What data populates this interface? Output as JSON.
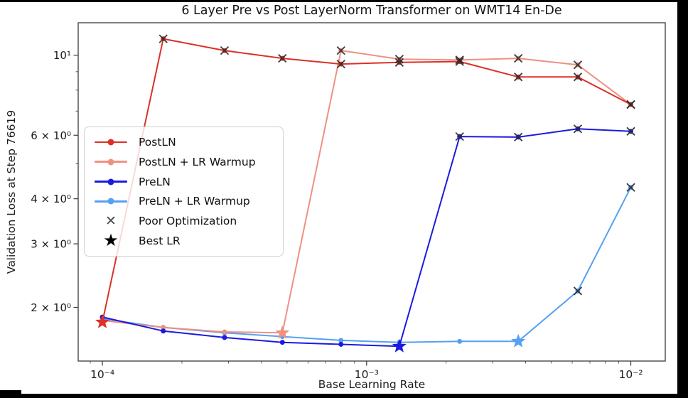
{
  "chart_data": {
    "type": "line",
    "title": "6 Layer Pre vs Post LayerNorm Transformer on WMT14 En-De",
    "xlabel": "Base Learning Rate",
    "ylabel": "Validation Loss at Step 76619",
    "xscale": "log",
    "yscale": "log",
    "xlim": [
      8.1e-05,
      0.0135
    ],
    "ylim": [
      1.42,
      12.3
    ],
    "grid": false,
    "legend_position": "center left",
    "x": [
      0.0001,
      0.00017,
      0.00029,
      0.00048,
      0.0008,
      0.00133,
      0.00225,
      0.00375,
      0.0063,
      0.01
    ],
    "series": [
      {
        "name": "PostLN",
        "color": "#dc3127",
        "values": [
          1.82,
          11.1,
          10.3,
          9.8,
          9.45,
          9.55,
          9.6,
          8.7,
          8.7,
          7.3
        ],
        "markers": [
          "star",
          "x",
          "x",
          "x",
          "x",
          "x",
          "x",
          "x",
          "x",
          "x"
        ]
      },
      {
        "name": "PostLN + LR Warmup",
        "color": "#ee9181",
        "values": [
          1.84,
          1.76,
          1.71,
          1.7,
          10.3,
          9.75,
          9.7,
          9.8,
          9.4,
          7.3
        ],
        "markers": [
          "dot",
          "dot",
          "dot",
          "star",
          "x",
          "x",
          "x",
          "x",
          "x",
          "x"
        ]
      },
      {
        "name": "PreLN",
        "color": "#1b1be0",
        "values": [
          1.88,
          1.72,
          1.65,
          1.6,
          1.58,
          1.56,
          5.95,
          5.93,
          6.25,
          6.15
        ],
        "markers": [
          "dot",
          "dot",
          "dot",
          "dot",
          "dot",
          "star",
          "x",
          "x",
          "x",
          "x"
        ]
      },
      {
        "name": "PreLN + LR Warmup",
        "color": "#55a0f2",
        "values": [
          1.86,
          1.76,
          1.7,
          1.66,
          1.62,
          1.6,
          1.61,
          1.61,
          2.22,
          4.3
        ],
        "markers": [
          "dot",
          "dot",
          "dot",
          "dot",
          "dot",
          "dot",
          "dot",
          "star",
          "x",
          "x"
        ]
      }
    ],
    "marker_meanings": [
      {
        "marker": "x",
        "label": "Poor Optimization"
      },
      {
        "marker": "star",
        "label": "Best LR"
      }
    ],
    "xticks": [
      {
        "value": 0.0001,
        "label": "10⁻⁴"
      },
      {
        "value": 0.001,
        "label": "10⁻³"
      },
      {
        "value": 0.01,
        "label": "10⁻²"
      }
    ],
    "yticks": [
      {
        "value": 10,
        "label": "10¹"
      },
      {
        "value": 6,
        "label": "6 × 10⁰"
      },
      {
        "value": 4,
        "label": "4 × 10⁰"
      },
      {
        "value": 3,
        "label": "3 × 10⁰"
      },
      {
        "value": 2,
        "label": "2 × 10⁰"
      }
    ],
    "xminorticks": [
      9e-05,
      0.0002,
      0.0003,
      0.0004,
      0.0005,
      0.0006,
      0.0007,
      0.0008,
      0.0009,
      0.002,
      0.003,
      0.004,
      0.005,
      0.006,
      0.007,
      0.008,
      0.009
    ],
    "yminorticks": [
      5,
      7,
      8,
      9
    ],
    "x_marker_color": "#2d2d2d"
  },
  "legend": {
    "entries": [
      {
        "label": "PostLN",
        "type": "line",
        "color": "#dc3127"
      },
      {
        "label": "PostLN + LR Warmup",
        "type": "line",
        "color": "#ee9181"
      },
      {
        "label": "PreLN",
        "type": "line",
        "color": "#1b1be0"
      },
      {
        "label": "PreLN + LR Warmup",
        "type": "line",
        "color": "#55a0f2"
      },
      {
        "label": "Poor Optimization",
        "type": "x",
        "glyph": "✕",
        "color": "#4a4a4a"
      },
      {
        "label": "Best LR",
        "type": "star",
        "glyph": "★",
        "color": "#000000"
      }
    ]
  }
}
